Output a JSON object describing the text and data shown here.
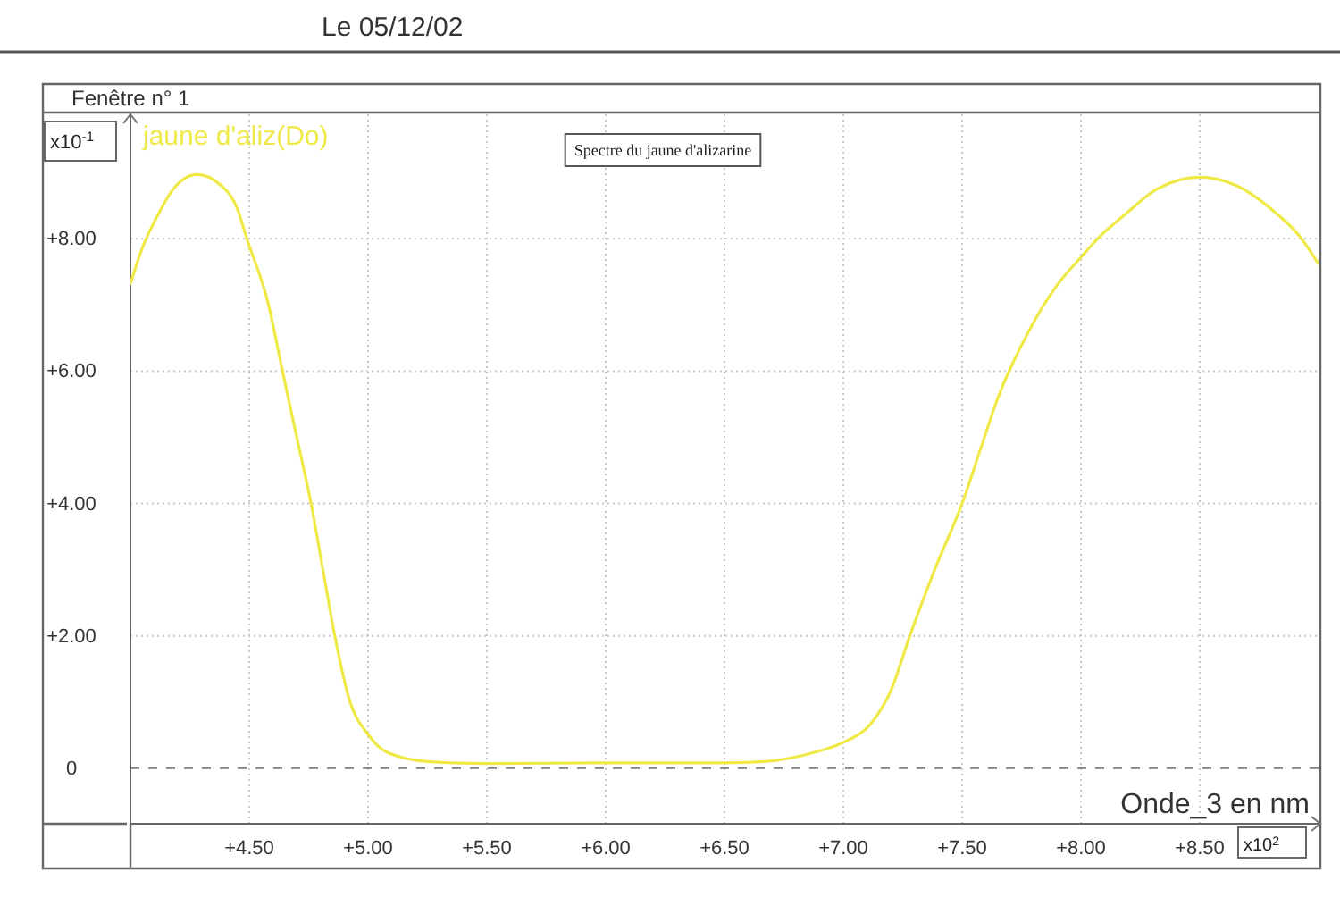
{
  "chart_data": {
    "type": "line",
    "title": "Spectre du jaune d'alizarine",
    "subtitle": "Fenêtre n° 1",
    "xlabel": "Onde_3 en nm",
    "ylabel": "x10$^{-1}$",
    "annotations": [
      "Le 05/12/02",
      "x10$^{2}$"
    ],
    "xlim": [
      4.0,
      9.0
    ],
    "ylim": [
      -0.84,
      9.88
    ],
    "xticks": [
      {
        "value": 4.5,
        "label": "+4.50"
      },
      {
        "value": 5.0,
        "label": "+5.00"
      },
      {
        "value": 5.5,
        "label": "+5.50"
      },
      {
        "value": 6.0,
        "label": "+6.00"
      },
      {
        "value": 6.5,
        "label": "+6.50"
      },
      {
        "value": 7.0,
        "label": "+7.00"
      },
      {
        "value": 7.5,
        "label": "+7.50"
      },
      {
        "value": 8.0,
        "label": "+8.00"
      },
      {
        "value": 8.5,
        "label": "+8.50"
      }
    ],
    "yticks": [
      0,
      {
        "value": 2,
        "label": "+2.00"
      },
      {
        "value": 4,
        "label": "+4.00"
      },
      {
        "value": 6,
        "label": "+6.00"
      },
      {
        "value": 8,
        "label": "+8.00"
      }
    ],
    "x": [
      4.0,
      4.05,
      4.12,
      4.18,
      4.28,
      4.38,
      4.45,
      4.49,
      4.58,
      4.64,
      4.7,
      4.76,
      4.81,
      4.86,
      4.92,
      5.0,
      5.08,
      5.25,
      5.5,
      6.0,
      6.5,
      6.67,
      6.88,
      7.0,
      7.12,
      7.2,
      7.28,
      7.38,
      7.5,
      7.58,
      7.65,
      7.78,
      7.9,
      8.0,
      8.07,
      8.18,
      8.32,
      8.5,
      8.65,
      8.82,
      8.92,
      9.0
    ],
    "series": [
      {
        "name": "jaune d'aliz(Do)",
        "color": "#efe946",
        "values": [
          7.32,
          7.86,
          8.39,
          8.75,
          8.97,
          8.81,
          8.45,
          8.0,
          7.02,
          6.0,
          5.0,
          4.0,
          3.0,
          2.0,
          1.05,
          0.51,
          0.24,
          0.1,
          0.07,
          0.08,
          0.08,
          0.1,
          0.24,
          0.39,
          0.69,
          1.17,
          2.0,
          2.96,
          4.0,
          4.85,
          5.59,
          6.6,
          7.3,
          7.72,
          8.0,
          8.35,
          8.75,
          8.93,
          8.81,
          8.39,
          8.04,
          7.62
        ]
      }
    ],
    "grid": true,
    "legend": "top left",
    "line_style": "solid",
    "ref_lines": [
      {
        "axis": "y",
        "value": 0,
        "color": "#7f7f7f",
        "line_style": "dashed"
      }
    ]
  }
}
